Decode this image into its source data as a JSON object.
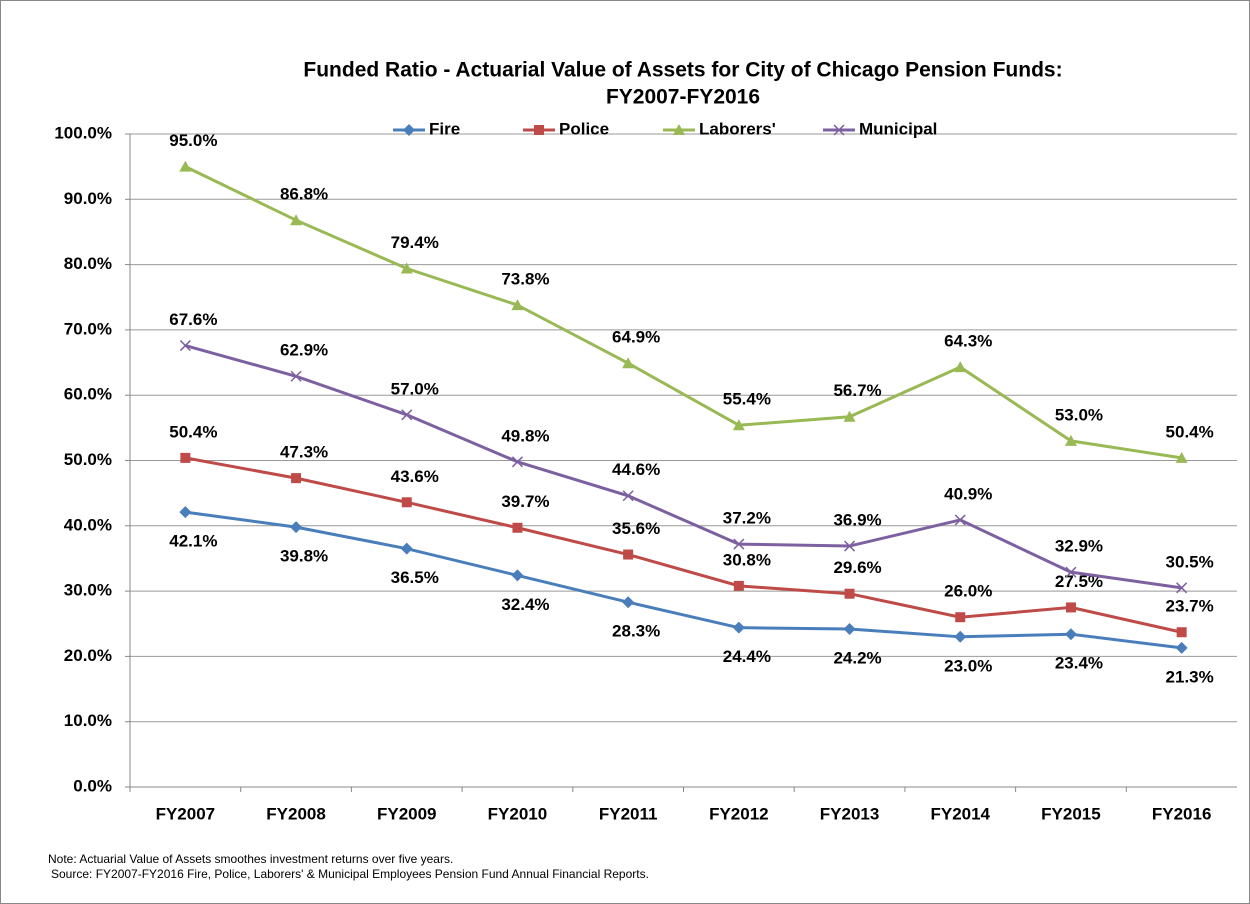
{
  "chart_data": {
    "type": "line",
    "title": "Funded Ratio - Actuarial Value of Assets for City of Chicago Pension Funds:",
    "subtitle": "FY2007-FY2016",
    "categories": [
      "FY2007",
      "FY2008",
      "FY2009",
      "FY2010",
      "FY2011",
      "FY2012",
      "FY2013",
      "FY2014",
      "FY2015",
      "FY2016"
    ],
    "series": [
      {
        "name": "Fire",
        "color": "#4a7ebb",
        "values": [
          42.1,
          39.8,
          36.5,
          32.4,
          28.3,
          24.4,
          24.2,
          23.0,
          23.4,
          21.3
        ],
        "value_labels": [
          "42.1%",
          "39.8%",
          "36.5%",
          "32.4%",
          "28.3%",
          "24.4%",
          "24.2%",
          "23.0%",
          "23.4%",
          "21.3%"
        ]
      },
      {
        "name": "Police",
        "color": "#be4b48",
        "values": [
          50.4,
          47.3,
          43.6,
          39.7,
          35.6,
          30.8,
          29.6,
          26.0,
          27.5,
          23.7
        ],
        "value_labels": [
          "50.4%",
          "47.3%",
          "43.6%",
          "39.7%",
          "35.6%",
          "30.8%",
          "29.6%",
          "26.0%",
          "27.5%",
          "23.7%"
        ]
      },
      {
        "name": "Laborers'",
        "color": "#98b954",
        "values": [
          95.0,
          86.8,
          79.4,
          73.8,
          64.9,
          55.4,
          56.7,
          64.3,
          53.0,
          50.4
        ],
        "value_labels": [
          "95.0%",
          "86.8%",
          "79.4%",
          "73.8%",
          "64.9%",
          "55.4%",
          "56.7%",
          "64.3%",
          "53.0%",
          "50.4%"
        ]
      },
      {
        "name": "Municipal",
        "color": "#7d60a0",
        "values": [
          67.6,
          62.9,
          57.0,
          49.8,
          44.6,
          37.2,
          36.9,
          40.9,
          32.9,
          30.5
        ],
        "value_labels": [
          "67.6%",
          "62.9%",
          "57.0%",
          "49.8%",
          "44.6%",
          "37.2%",
          "36.9%",
          "40.9%",
          "32.9%",
          "30.5%"
        ]
      }
    ],
    "ylim": [
      0,
      100
    ],
    "yticks": [
      {
        "value": 0,
        "label": "0.0%"
      },
      {
        "value": 10,
        "label": "10.0%"
      },
      {
        "value": 20,
        "label": "20.0%"
      },
      {
        "value": 30,
        "label": "30.0%"
      },
      {
        "value": 40,
        "label": "40.0%"
      },
      {
        "value": 50,
        "label": "50.0%"
      },
      {
        "value": 60,
        "label": "60.0%"
      },
      {
        "value": 70,
        "label": "70.0%"
      },
      {
        "value": 80,
        "label": "80.0%"
      },
      {
        "value": 90,
        "label": "90.0%"
      },
      {
        "value": 100,
        "label": "100.0%"
      }
    ],
    "grid": true,
    "legend": "top",
    "notes": [
      "Note: Actuarial  Value of Assets smoothes investment returns over five years.",
      "Source: FY2007-FY2016 Fire, Police, Laborers' & Municipal Employees Pension Fund Annual Financial Reports."
    ]
  }
}
